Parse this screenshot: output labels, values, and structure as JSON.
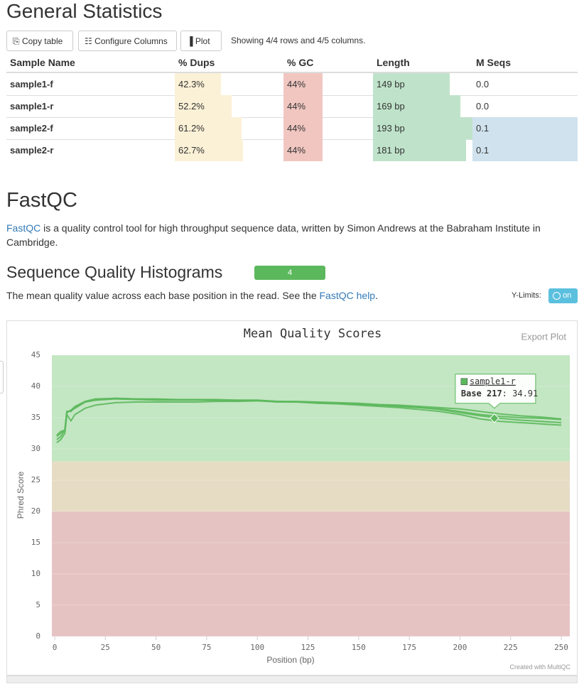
{
  "general_statistics": {
    "title": "General Statistics",
    "buttons": [
      "Copy table",
      "Configure Columns",
      "Plot"
    ],
    "showing": "Showing 4/4 rows and 4/5 columns.",
    "table": {
      "headers": [
        "Sample Name",
        "% Dups",
        "% GC",
        "Length",
        "M Seqs"
      ],
      "columns": [
        {},
        {
          "color": "#fbf1d6",
          "range": [
            0,
            100
          ]
        },
        {
          "color": "#f1c6c1",
          "range": [
            0,
            100
          ]
        },
        {
          "color": "#bfe3ca"
        },
        {
          "color": "#cfe2ee"
        }
      ],
      "rows": [
        [
          "sample1-f",
          {
            "value": 42.3,
            "label": "42.3%"
          },
          {
            "value": 44,
            "label": "44%"
          },
          {
            "value": 149,
            "label": "149 bp"
          },
          {
            "value": 0.0,
            "label": "0.0"
          }
        ],
        [
          "sample1-r",
          {
            "value": 52.2,
            "label": "52.2%"
          },
          {
            "value": 44,
            "label": "44%"
          },
          {
            "value": 169,
            "label": "169 bp"
          },
          {
            "value": 0.0,
            "label": "0.0"
          }
        ],
        [
          "sample2-f",
          {
            "value": 61.2,
            "label": "61.2%"
          },
          {
            "value": 44,
            "label": "44%"
          },
          {
            "value": 193,
            "label": "193 bp"
          },
          0.1
        ],
        [
          "sample2-r",
          {
            "value": 62.7,
            "label": "62.7%"
          },
          {
            "value": 44,
            "label": "44%"
          },
          {
            "value": 181,
            "label": "181 bp"
          },
          0.1
        ]
      ]
    }
  },
  "fastqc": {
    "title": "FastQC",
    "description": {
      "link": "FastQC",
      "text": "is a quality control tool for high throughput sequence data, written by Simon Andrews at the Babraham Institute in Cambridge."
    },
    "section": {
      "title": "Sequence Quality Histograms",
      "badge": "4",
      "description": {
        "before": "The mean quality value across each base position in the read. See the",
        "link": "FastQC help",
        "after": "."
      },
      "ylimits_label": "Y-Limits:",
      "toggle": "on",
      "export": "Export Plot",
      "credit": "Created with MultiQC"
    }
  },
  "chart_data": {
    "type": "line",
    "title": "Mean Quality Scores",
    "xlabel": "Position (bp)",
    "ylabel": "Phred Score",
    "xlim": [
      0,
      250
    ],
    "ylim": [
      0,
      45
    ],
    "xticks": [
      0,
      25,
      50,
      75,
      100,
      125,
      150,
      175,
      200,
      225,
      250
    ],
    "yticks": [
      0,
      5,
      10,
      15,
      20,
      25,
      30,
      35,
      40,
      45
    ],
    "bands": [
      {
        "from": 28,
        "to": 45,
        "color": "#c3e6c3"
      },
      {
        "from": 20,
        "to": 28,
        "color": "#e6dcc4"
      },
      {
        "from": 0,
        "to": 20,
        "color": "#e6c3c3"
      }
    ],
    "x": [
      1,
      3,
      5,
      6,
      7,
      8,
      10,
      15,
      20,
      30,
      40,
      50,
      60,
      70,
      80,
      90,
      100,
      110,
      120,
      130,
      140,
      150,
      160,
      170,
      180,
      190,
      200,
      210,
      220,
      230,
      240,
      250
    ],
    "series": [
      {
        "name": "sample1-f",
        "color": "#5cb85c",
        "values": [
          32.0,
          32.5,
          33.0,
          36.0,
          36.0,
          36.2,
          36.5,
          37.5,
          37.8,
          38.0,
          37.9,
          37.8,
          37.8,
          37.8,
          37.8,
          37.7,
          37.7,
          37.5,
          37.5,
          37.4,
          37.3,
          37.2,
          37.0,
          36.9,
          36.6,
          36.4,
          36.0,
          35.5,
          35.2,
          35.0,
          34.9,
          34.7
        ]
      },
      {
        "name": "sample1-r",
        "color": "#5cb85c",
        "values": [
          31.5,
          32.0,
          33.0,
          36.0,
          36.0,
          36.2,
          36.8,
          37.6,
          38.0,
          38.1,
          38.0,
          38.0,
          37.9,
          37.9,
          37.9,
          37.8,
          37.8,
          37.6,
          37.5,
          37.4,
          37.3,
          37.2,
          37.0,
          36.8,
          36.6,
          36.3,
          35.8,
          35.3,
          34.9,
          34.6,
          34.4,
          34.2
        ]
      },
      {
        "name": "sample2-f",
        "color": "#5cb85c",
        "values": [
          31.0,
          31.5,
          32.5,
          35.5,
          35.0,
          34.5,
          35.5,
          36.5,
          37.0,
          37.4,
          37.5,
          37.5,
          37.5,
          37.5,
          37.6,
          37.6,
          37.7,
          37.6,
          37.6,
          37.5,
          37.4,
          37.3,
          37.1,
          37.0,
          36.8,
          36.6,
          36.4,
          36.0,
          35.6,
          35.3,
          35.1,
          34.8
        ]
      },
      {
        "name": "sample2-r",
        "color": "#5cb85c",
        "values": [
          32.2,
          32.8,
          33.0,
          35.8,
          36.0,
          36.0,
          36.6,
          37.5,
          37.8,
          38.1,
          38.0,
          37.9,
          37.9,
          37.9,
          37.8,
          37.8,
          37.8,
          37.6,
          37.5,
          37.3,
          37.2,
          37.0,
          36.8,
          36.6,
          36.3,
          36.0,
          35.5,
          34.8,
          34.4,
          34.2,
          34.0,
          33.8
        ]
      }
    ],
    "tooltip": {
      "name": "sample1-r",
      "x_label": "Base 217",
      "x": 217,
      "value": 34.91
    }
  }
}
